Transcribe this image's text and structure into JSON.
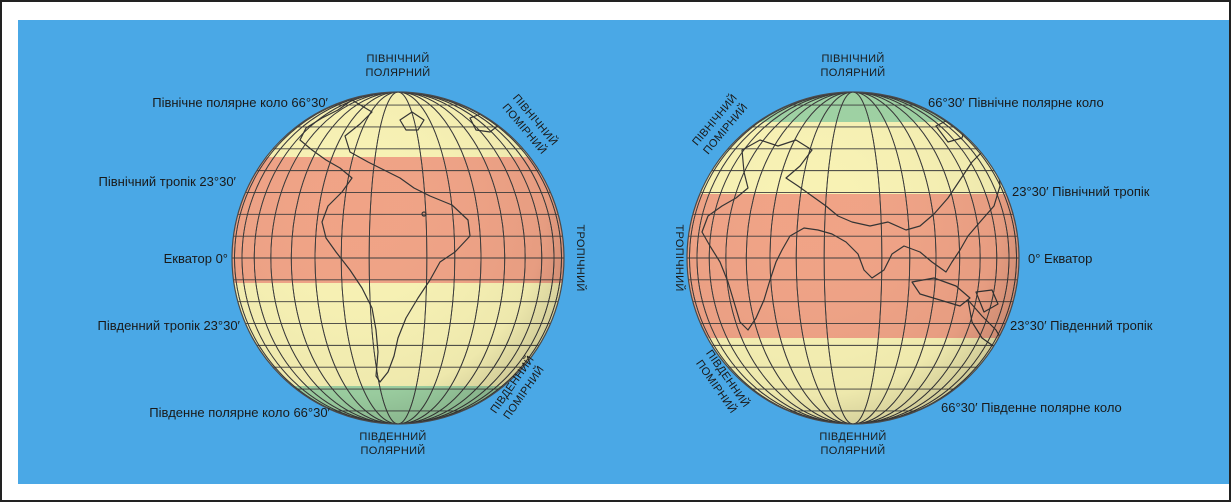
{
  "colors": {
    "background": "#4aa8e6",
    "tropical": "#f0a386",
    "temperate": "#f8f2b4",
    "polar": "#9fd3a4",
    "frame": "#222222"
  },
  "globes": [
    {
      "zone_labels": {
        "north_polar": [
          "ПІВНІЧНИЙ",
          "ПОЛЯРНИЙ"
        ],
        "north_temperate": [
          "ПІВНІЧНИЙ",
          "ПОМІРНИЙ"
        ],
        "tropical": "ТРОПІЧНИЙ",
        "south_temperate": [
          "ПІВДЕННИЙ",
          "ПОМІРНИЙ"
        ],
        "south_polar": [
          "ПІВДЕННИЙ",
          "ПОЛЯРНИЙ"
        ]
      },
      "line_labels": {
        "arctic_circle": "Північне полярне коло  66°30′",
        "tropic_cancer": "Північний тропік  23°30′",
        "equator": "Екватор  0°",
        "tropic_capricorn": "Південний тропік  23°30′",
        "antarctic_circle": "Південне полярне коло  66°30′"
      }
    },
    {
      "zone_labels": {
        "north_polar": [
          "ПІВНІЧНИЙ",
          "ПОЛЯРНИЙ"
        ],
        "north_temperate": [
          "ПІВНІЧНИЙ",
          "ПОМІРНИЙ"
        ],
        "tropical": "ТРОПІЧНИЙ",
        "south_temperate": [
          "ПІВДЕННИЙ",
          "ПОМІРНИЙ"
        ],
        "south_polar": [
          "ПІВДЕННИЙ",
          "ПОЛЯРНИЙ"
        ]
      },
      "line_labels": {
        "arctic_circle": "66°30′  Північне полярне коло",
        "tropic_cancer": "23°30′  Північний тропік",
        "equator": "0°  Екватор",
        "tropic_capricorn": "23°30′  Південний тропік",
        "antarctic_circle": "66°30′  Південне полярне коло"
      }
    }
  ]
}
